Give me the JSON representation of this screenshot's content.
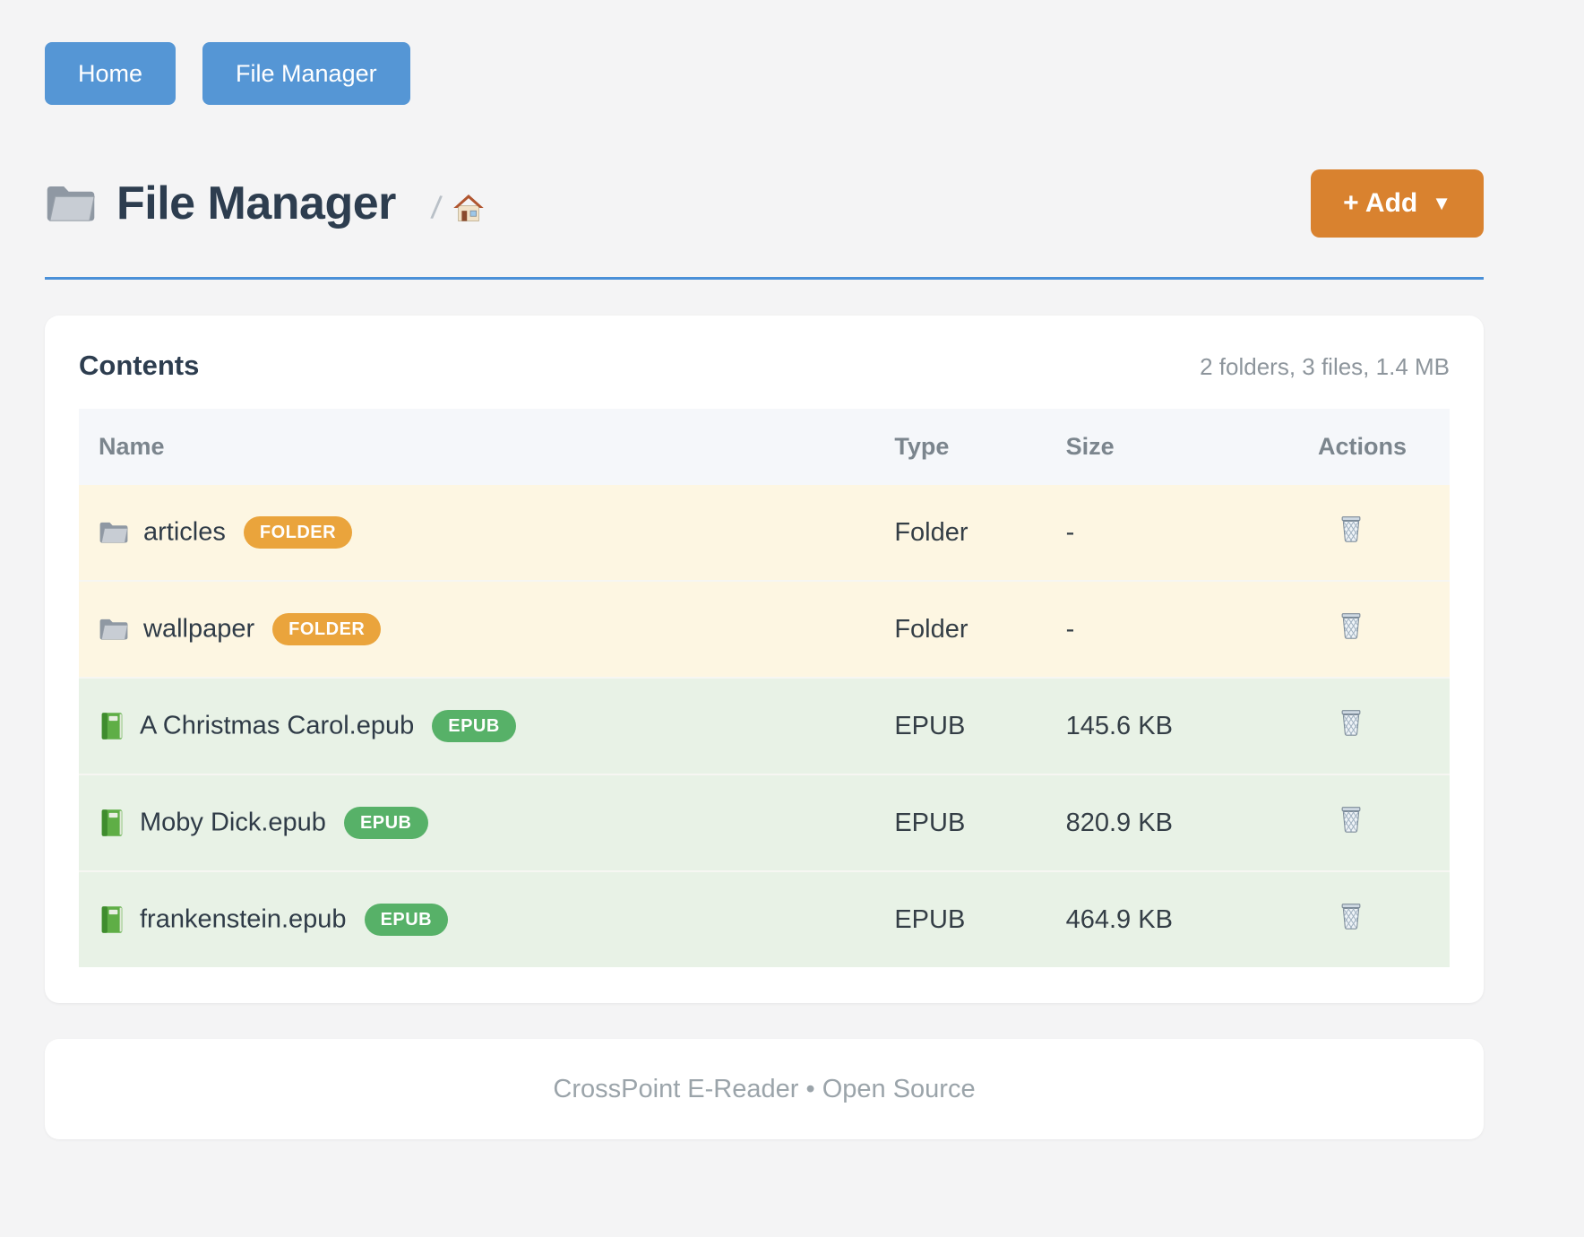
{
  "nav": {
    "items": [
      {
        "label": "Home"
      },
      {
        "label": "File Manager"
      }
    ]
  },
  "header": {
    "title": "File Manager",
    "title_icon": "folder-icon",
    "breadcrumb": {
      "separator": "/",
      "home_icon": "home-icon"
    },
    "add_button": {
      "label": "+ Add",
      "caret": "▼"
    }
  },
  "contents": {
    "title": "Contents",
    "summary": "2 folders, 3 files, 1.4 MB",
    "columns": [
      "Name",
      "Type",
      "Size",
      "Actions"
    ],
    "action_icon": "trash-icon",
    "rows": [
      {
        "icon": "folder-icon",
        "name": "articles",
        "badge": "FOLDER",
        "badge_type": "folder",
        "type": "Folder",
        "size": "-"
      },
      {
        "icon": "folder-icon",
        "name": "wallpaper",
        "badge": "FOLDER",
        "badge_type": "folder",
        "type": "Folder",
        "size": "-"
      },
      {
        "icon": "book-icon",
        "name": "A Christmas Carol.epub",
        "badge": "EPUB",
        "badge_type": "epub",
        "type": "EPUB",
        "size": "145.6 KB"
      },
      {
        "icon": "book-icon",
        "name": "Moby Dick.epub",
        "badge": "EPUB",
        "badge_type": "epub",
        "type": "EPUB",
        "size": "820.9 KB"
      },
      {
        "icon": "book-icon",
        "name": "frankenstein.epub",
        "badge": "EPUB",
        "badge_type": "epub",
        "type": "EPUB",
        "size": "464.9 KB"
      }
    ]
  },
  "footer": {
    "text": "CrossPoint E-Reader • Open Source"
  },
  "colors": {
    "page_background": "#f4f4f5",
    "nav_button_blue": "#5596d5",
    "add_button_orange": "#d9822f",
    "rule_blue": "#4a90d8",
    "badge_folder_orange": "#eaa43c",
    "badge_epub_green": "#57b168",
    "row_folder_bg": "#fdf6e2",
    "row_epub_bg": "#e8f2e6",
    "title_text": "#2d3d4f"
  }
}
